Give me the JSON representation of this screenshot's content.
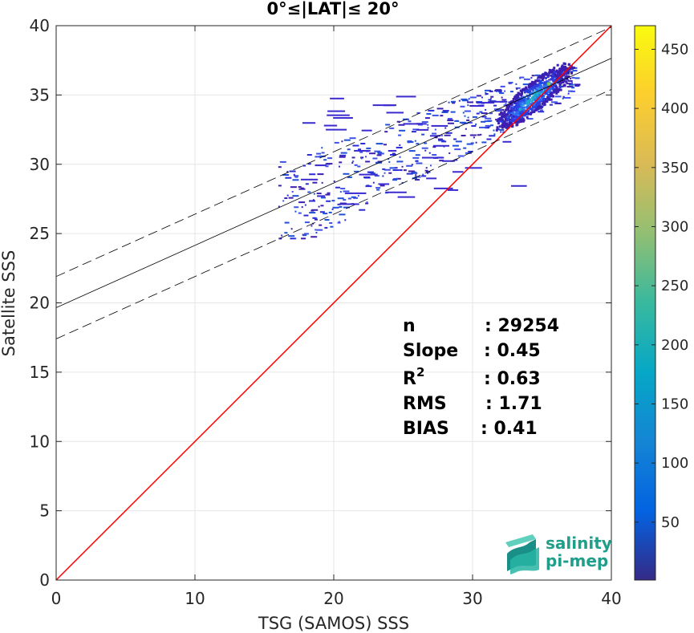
{
  "chart_data": {
    "type": "heatmap",
    "title": "0°≤|LAT|≤ 20°",
    "xlabel": "TSG (SAMOS) SSS",
    "ylabel": "Satellite SSS",
    "xlim": [
      0,
      40
    ],
    "ylim": [
      0,
      40
    ],
    "xticks": [
      0,
      10,
      20,
      30,
      40
    ],
    "yticks": [
      0,
      5,
      10,
      15,
      20,
      25,
      30,
      35,
      40
    ],
    "grid": true,
    "colorbar": {
      "colormap": "parula",
      "range": [
        1,
        470
      ],
      "ticks": [
        50,
        100,
        150,
        200,
        250,
        300,
        350,
        400,
        450
      ]
    },
    "identity_line": {
      "slope": 1,
      "intercept": 0,
      "color": "#ff0000"
    },
    "fit_line": {
      "slope": 0.45,
      "intercept": 19.65,
      "color": "#000000"
    },
    "fit_band": {
      "offset": 2.25,
      "style": "dashed",
      "color": "#000000"
    },
    "density_cluster": {
      "center": [
        35.5,
        35.8
      ],
      "range_x": [
        16,
        37.5
      ],
      "range_y": [
        24.7,
        37.5
      ]
    },
    "stats": [
      {
        "label": "n",
        "sep": ":",
        "value": "29254"
      },
      {
        "label": "Slope",
        "sep": ":",
        "value": "0.45"
      },
      {
        "label": "R",
        "sup": "2",
        "sep": ":",
        "value": "0.63"
      },
      {
        "label": "RMS",
        "sep": ":",
        "value": "1.71"
      },
      {
        "label": "BIAS",
        "sep": ":",
        "value": "0.41"
      }
    ]
  },
  "logo": {
    "line1": "salinity",
    "line2": "pi-mep",
    "color": "#1f9e89"
  }
}
